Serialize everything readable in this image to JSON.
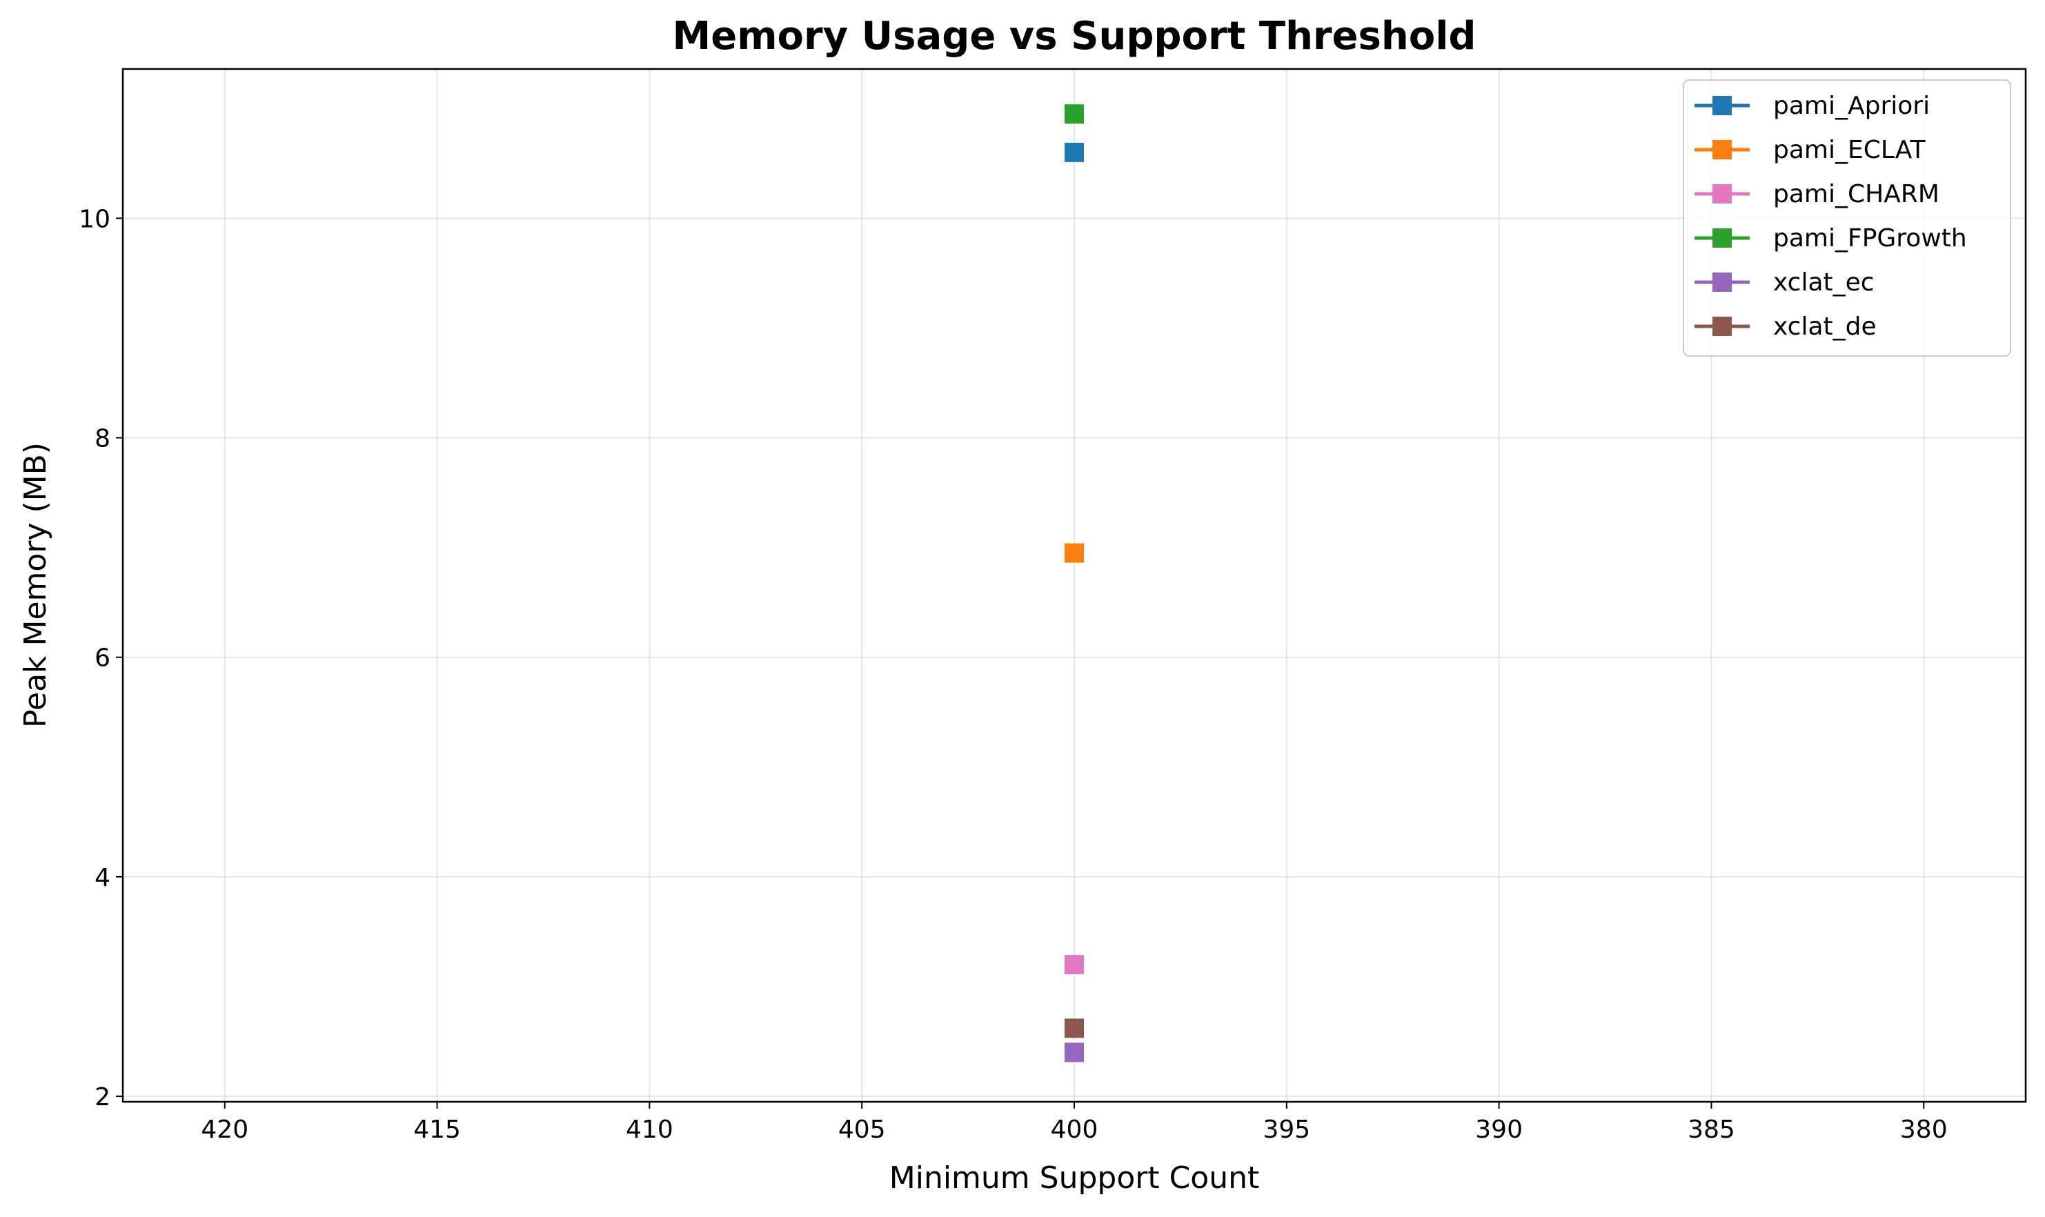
{
  "chart_data": {
    "type": "line",
    "title": "Memory Usage vs Support Threshold",
    "xlabel": "Minimum Support Count",
    "ylabel": "Peak Memory (MB)",
    "x_axis_inverted": true,
    "xlim": [
      422.4,
      377.6
    ],
    "ylim": [
      1.95,
      11.36
    ],
    "xticks": [
      "420",
      "415",
      "410",
      "405",
      "400",
      "395",
      "390",
      "385",
      "380"
    ],
    "yticks": [
      "2",
      "4",
      "6",
      "8",
      "10"
    ],
    "grid": true,
    "legend_position": "upper right",
    "marker": "square",
    "series": [
      {
        "name": "pami_Apriori",
        "color": "#1f77b4",
        "x": [
          400
        ],
        "y": [
          10.6
        ]
      },
      {
        "name": "pami_ECLAT",
        "color": "#ff7f0e",
        "x": [
          400
        ],
        "y": [
          6.95
        ]
      },
      {
        "name": "pami_CHARM",
        "color": "#e377c2",
        "x": [
          400
        ],
        "y": [
          3.2
        ]
      },
      {
        "name": "pami_FPGrowth",
        "color": "#2ca02c",
        "x": [
          400
        ],
        "y": [
          10.95
        ]
      },
      {
        "name": "xclat_ec",
        "color": "#9467bd",
        "x": [
          400
        ],
        "y": [
          2.4
        ]
      },
      {
        "name": "xclat_de",
        "color": "#8c564b",
        "x": [
          400
        ],
        "y": [
          2.62
        ]
      }
    ]
  }
}
